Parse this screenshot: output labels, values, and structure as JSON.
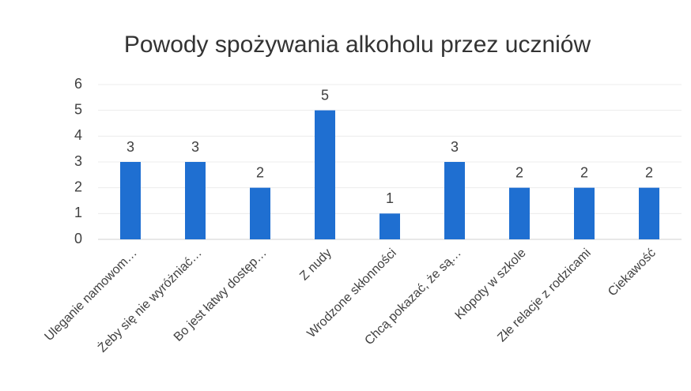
{
  "chart_data": {
    "type": "bar",
    "title": "Powody spożywania alkoholu przez uczniów",
    "categories": [
      "Uleganie namowom…",
      "Żeby się nie wyróżniać…",
      "Bo jest łatwy dostęp…",
      "Z nudy",
      "Wrodzone skłonności",
      "Chcą pokazać, że są…",
      "Kłopoty w szkole",
      "Złe relacje z rodzicami",
      "Ciekawość"
    ],
    "values": [
      3,
      3,
      2,
      5,
      1,
      3,
      2,
      2,
      2
    ],
    "color": "#1f6fd1",
    "ylim": [
      0,
      6
    ],
    "yticks": [
      0,
      1,
      2,
      3,
      4,
      5,
      6
    ],
    "grid": true
  }
}
